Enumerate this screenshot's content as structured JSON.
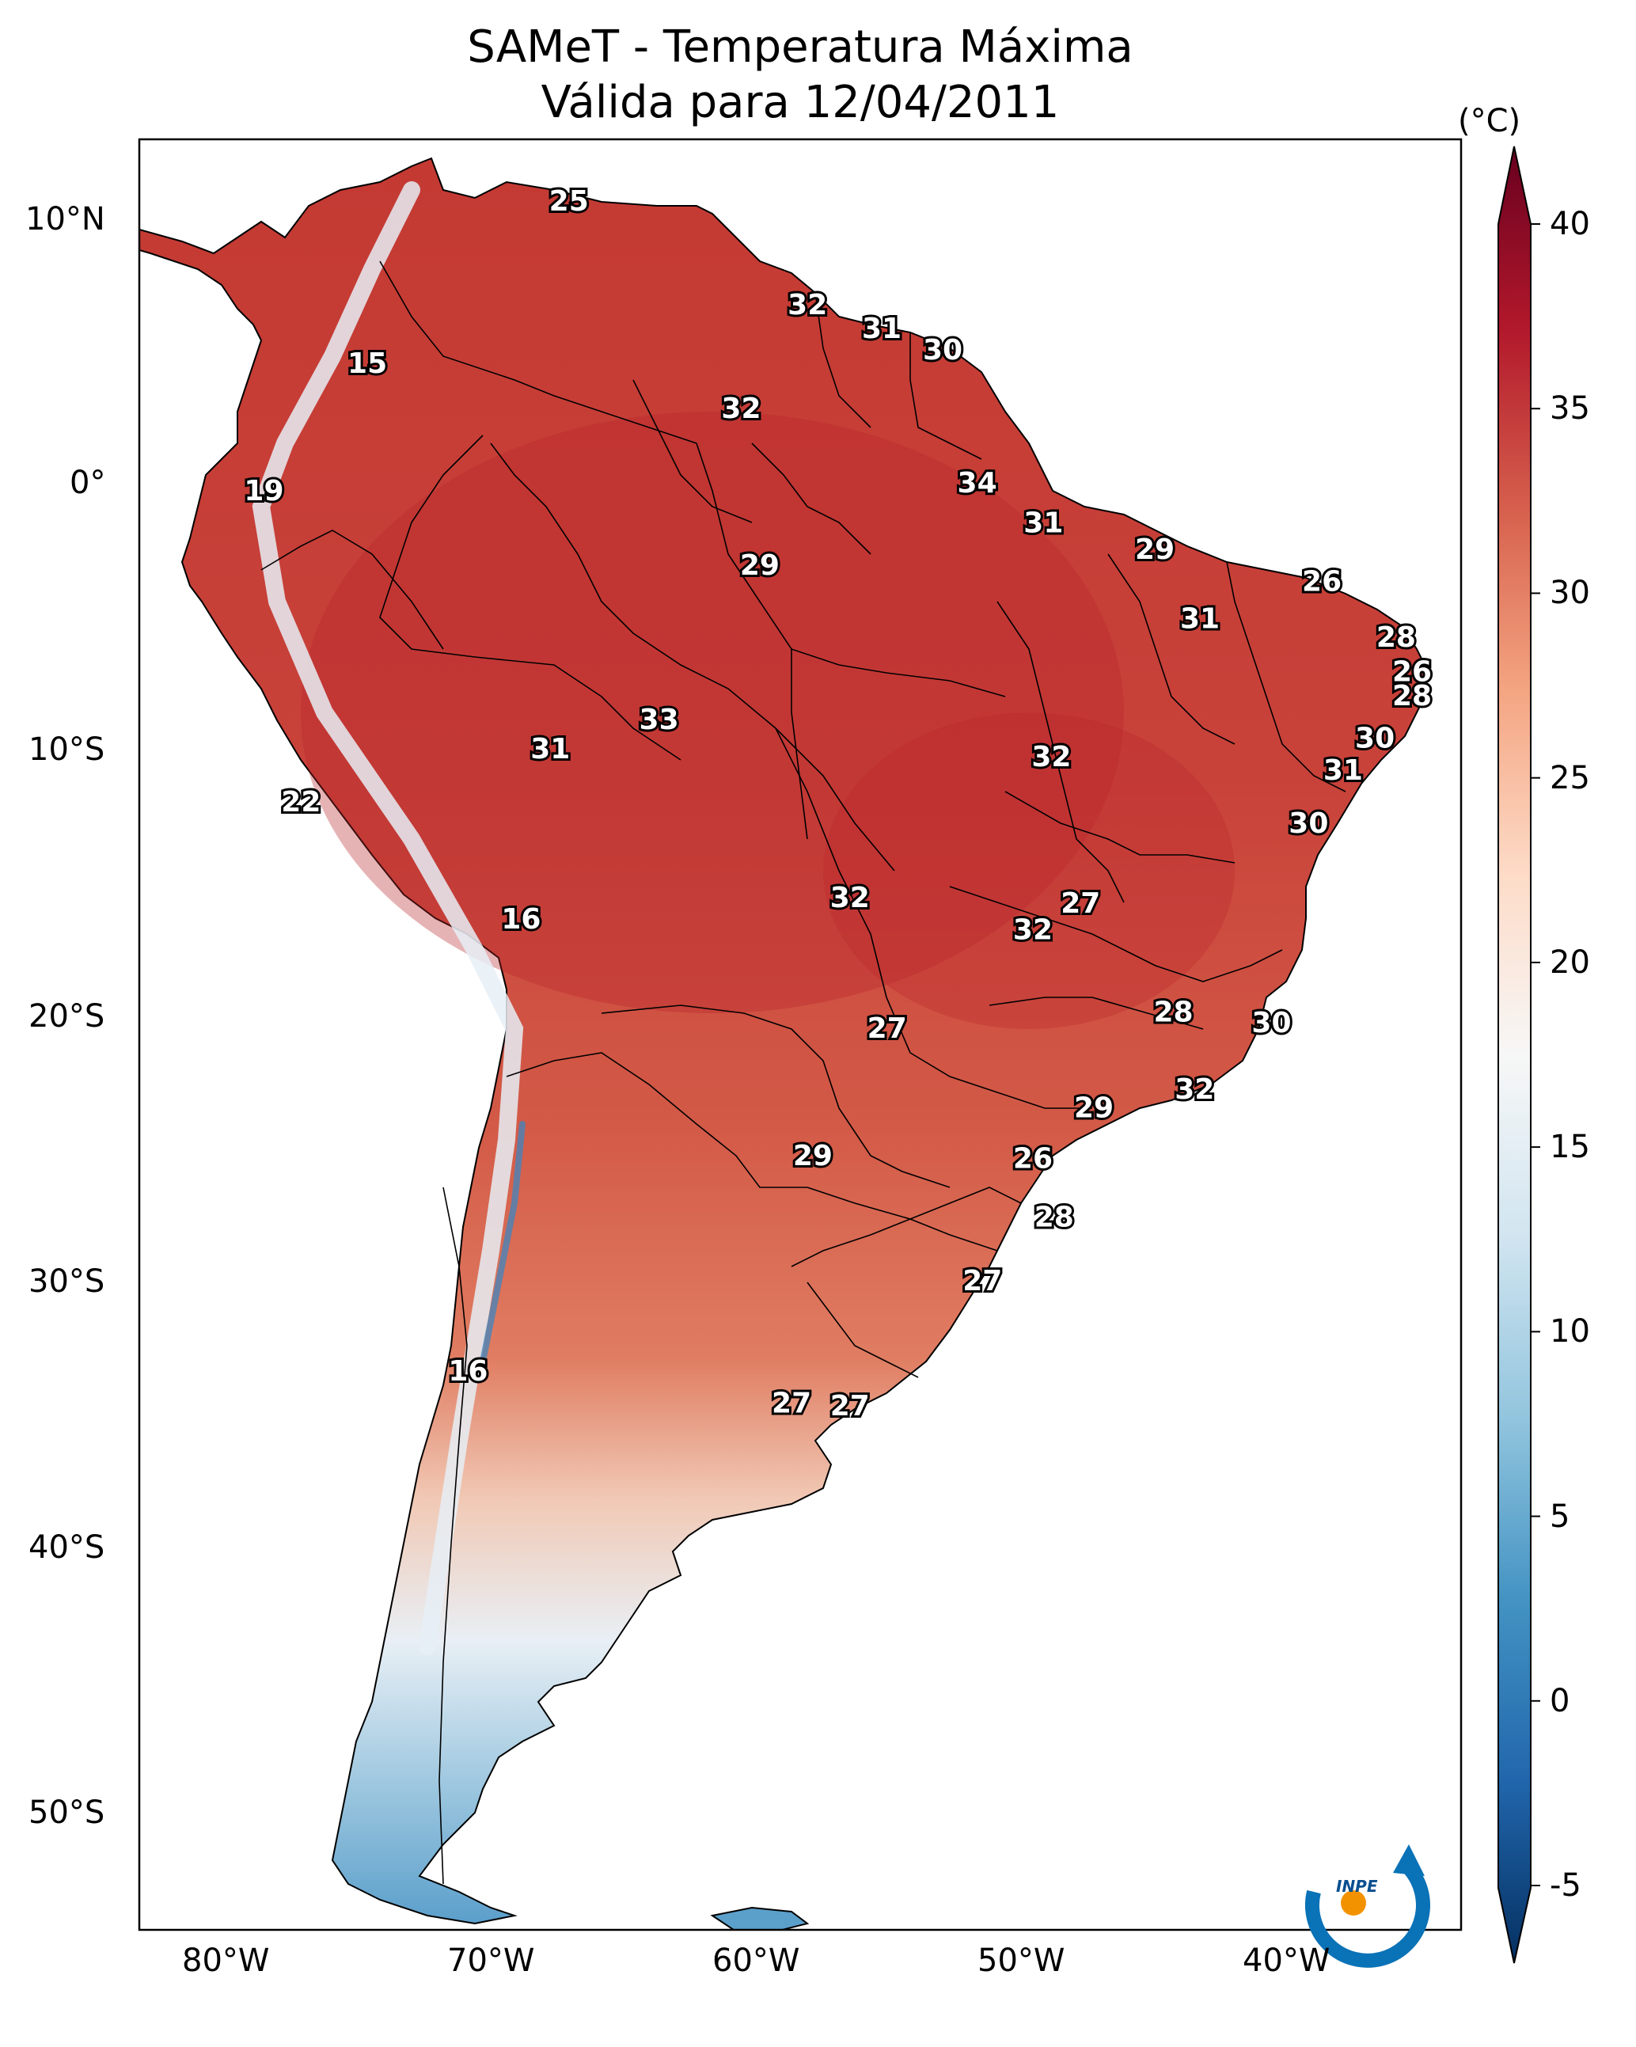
{
  "title": {
    "line1": "SAMeT - Temperatura Máxima",
    "line2": "Válida para 12/04/2011"
  },
  "axes": {
    "lat_labels": [
      "10°N",
      "0°",
      "10°S",
      "20°S",
      "30°S",
      "40°S",
      "50°S"
    ],
    "lon_labels": [
      "80°W",
      "70°W",
      "60°W",
      "50°W",
      "40°W"
    ]
  },
  "colorbar": {
    "unit": "(°C)",
    "ticks": [
      "40",
      "35",
      "30",
      "25",
      "20",
      "15",
      "10",
      "5",
      "0",
      "-5"
    ],
    "range": [
      -5,
      40
    ],
    "colors": [
      "#053061",
      "#2166ac",
      "#4393c3",
      "#92c5de",
      "#d1e5f0",
      "#f7f7f7",
      "#fddbc7",
      "#f4a582",
      "#d6604d",
      "#b2182b",
      "#67001f"
    ]
  },
  "logo": {
    "text": "INPE"
  },
  "station_labels": [
    {
      "v": "25",
      "lon": -66.8,
      "lat": 10.6
    },
    {
      "v": "15",
      "lon": -74.4,
      "lat": 4.5
    },
    {
      "v": "19",
      "lon": -78.3,
      "lat": -0.3
    },
    {
      "v": "32",
      "lon": -57.8,
      "lat": 6.7
    },
    {
      "v": "31",
      "lon": -55.0,
      "lat": 5.8
    },
    {
      "v": "30",
      "lon": -52.7,
      "lat": 5.0
    },
    {
      "v": "32",
      "lon": -60.3,
      "lat": 2.8
    },
    {
      "v": "34",
      "lon": -51.4,
      "lat": 0.0
    },
    {
      "v": "31",
      "lon": -48.9,
      "lat": -1.5
    },
    {
      "v": "29",
      "lon": -59.6,
      "lat": -3.1
    },
    {
      "v": "29",
      "lon": -44.7,
      "lat": -2.5
    },
    {
      "v": "26",
      "lon": -38.4,
      "lat": -3.7
    },
    {
      "v": "31",
      "lon": -43.0,
      "lat": -5.1
    },
    {
      "v": "28",
      "lon": -35.6,
      "lat": -5.8
    },
    {
      "v": "26",
      "lon": -35.0,
      "lat": -7.1
    },
    {
      "v": "28",
      "lon": -35.0,
      "lat": -8.0
    },
    {
      "v": "33",
      "lon": -63.4,
      "lat": -8.9
    },
    {
      "v": "31",
      "lon": -67.5,
      "lat": -10.0
    },
    {
      "v": "32",
      "lon": -48.6,
      "lat": -10.3
    },
    {
      "v": "30",
      "lon": -36.4,
      "lat": -9.6
    },
    {
      "v": "31",
      "lon": -37.6,
      "lat": -10.8
    },
    {
      "v": "22",
      "lon": -76.9,
      "lat": -12.0
    },
    {
      "v": "30",
      "lon": -38.9,
      "lat": -12.8
    },
    {
      "v": "16",
      "lon": -68.6,
      "lat": -16.4
    },
    {
      "v": "32",
      "lon": -56.2,
      "lat": -15.6
    },
    {
      "v": "27",
      "lon": -47.5,
      "lat": -15.8
    },
    {
      "v": "32",
      "lon": -49.3,
      "lat": -16.8
    },
    {
      "v": "27",
      "lon": -54.8,
      "lat": -20.5
    },
    {
      "v": "28",
      "lon": -44.0,
      "lat": -19.9
    },
    {
      "v": "30",
      "lon": -40.3,
      "lat": -20.3
    },
    {
      "v": "32",
      "lon": -43.2,
      "lat": -22.8
    },
    {
      "v": "29",
      "lon": -47.0,
      "lat": -23.5
    },
    {
      "v": "29",
      "lon": -57.6,
      "lat": -25.3
    },
    {
      "v": "26",
      "lon": -49.3,
      "lat": -25.4
    },
    {
      "v": "28",
      "lon": -48.5,
      "lat": -27.6
    },
    {
      "v": "27",
      "lon": -51.2,
      "lat": -30.0
    },
    {
      "v": "16",
      "lon": -70.6,
      "lat": -33.4
    },
    {
      "v": "27",
      "lon": -58.4,
      "lat": -34.6
    },
    {
      "v": "27",
      "lon": -56.2,
      "lat": -34.7
    }
  ]
}
